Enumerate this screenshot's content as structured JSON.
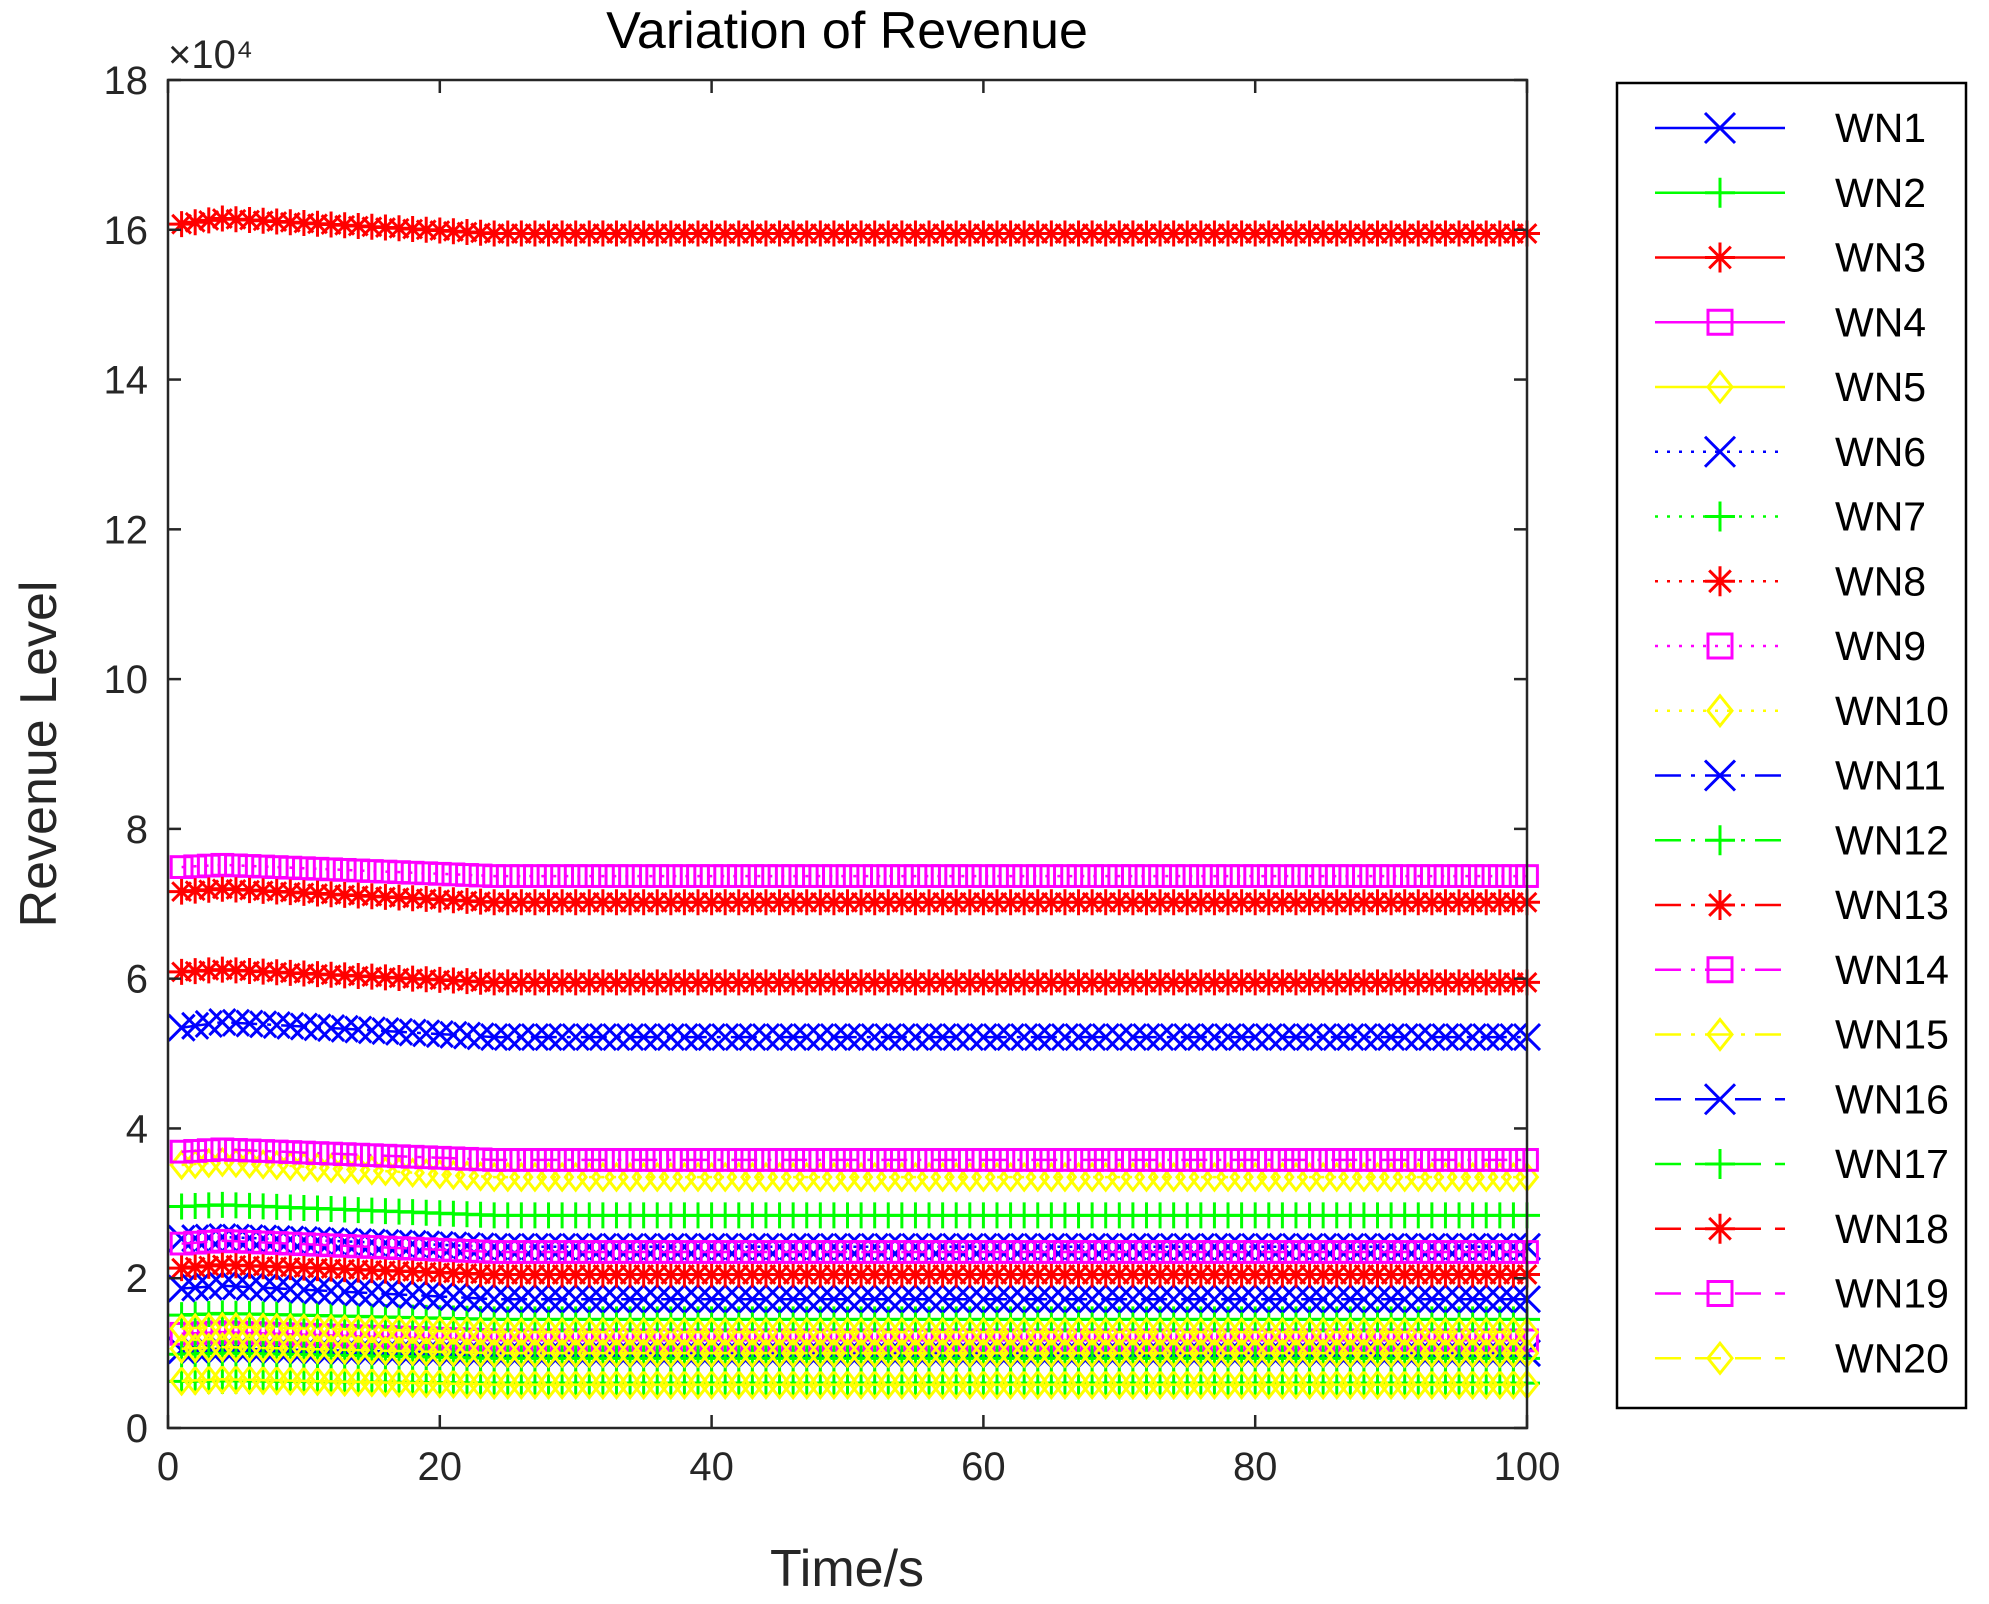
{
  "chart_data": {
    "type": "line",
    "title": "Variation of Revenue",
    "xlabel": "Time/s",
    "ylabel": "Revenue Level",
    "exponent_label": "×10⁴",
    "xlim": [
      0,
      100
    ],
    "ylim": [
      0,
      18
    ],
    "xticks": [
      0,
      20,
      40,
      60,
      80,
      100
    ],
    "yticks": [
      0,
      2,
      4,
      6,
      8,
      10,
      12,
      14,
      16,
      18
    ],
    "x_step": 1,
    "x_end": 100,
    "grid": false,
    "legend_position": "outside-right",
    "series": [
      {
        "name": "WN1",
        "color": "#0000ff",
        "style": "solid",
        "marker": "x",
        "start": 1.03,
        "peak": 1.06,
        "end": 1.0
      },
      {
        "name": "WN2",
        "color": "#00ff00",
        "style": "solid",
        "marker": "plus",
        "start": 0.62,
        "peak": 0.63,
        "end": 0.6
      },
      {
        "name": "WN3",
        "color": "#ff0000",
        "style": "solid",
        "marker": "star",
        "start": 16.05,
        "peak": 16.15,
        "end": 15.95
      },
      {
        "name": "WN4",
        "color": "#ff00ff",
        "style": "solid",
        "marker": "square",
        "start": 1.25,
        "peak": 1.28,
        "end": 1.17
      },
      {
        "name": "WN5",
        "color": "#ffff00",
        "style": "solid",
        "marker": "diamond",
        "start": 0.62,
        "peak": 0.65,
        "end": 0.58
      },
      {
        "name": "WN6",
        "color": "#0000ff",
        "style": "dotted",
        "marker": "x",
        "start": 2.52,
        "peak": 2.55,
        "end": 2.42
      },
      {
        "name": "WN7",
        "color": "#00ff00",
        "style": "dotted",
        "marker": "plus",
        "start": 2.95,
        "peak": 2.98,
        "end": 2.84
      },
      {
        "name": "WN8",
        "color": "#ff0000",
        "style": "dotted",
        "marker": "star",
        "start": 7.15,
        "peak": 7.2,
        "end": 7.02
      },
      {
        "name": "WN9",
        "color": "#ff00ff",
        "style": "dotted",
        "marker": "square",
        "start": 7.48,
        "peak": 7.52,
        "end": 7.37
      },
      {
        "name": "WN10",
        "color": "#ffff00",
        "style": "dotted",
        "marker": "diamond",
        "start": 3.5,
        "peak": 3.55,
        "end": 3.35
      },
      {
        "name": "WN11",
        "color": "#0000ff",
        "style": "dashdot",
        "marker": "x",
        "start": 5.32,
        "peak": 5.42,
        "end": 5.22
      },
      {
        "name": "WN12",
        "color": "#00ff00",
        "style": "dashdot",
        "marker": "plus",
        "start": 1.5,
        "peak": 1.53,
        "end": 1.45
      },
      {
        "name": "WN13",
        "color": "#ff0000",
        "style": "dashdot",
        "marker": "star",
        "start": 6.08,
        "peak": 6.12,
        "end": 5.95
      },
      {
        "name": "WN14",
        "color": "#ff00ff",
        "style": "dashdot",
        "marker": "square",
        "start": 3.68,
        "peak": 3.72,
        "end": 3.58
      },
      {
        "name": "WN15",
        "color": "#ffff00",
        "style": "dashdot",
        "marker": "diamond",
        "start": 1.32,
        "peak": 1.35,
        "end": 1.28
      },
      {
        "name": "WN16",
        "color": "#0000ff",
        "style": "dashed",
        "marker": "x",
        "start": 1.85,
        "peak": 1.9,
        "end": 1.72
      },
      {
        "name": "WN17",
        "color": "#00ff00",
        "style": "dashed",
        "marker": "plus",
        "start": 0.98,
        "peak": 1.0,
        "end": 0.93
      },
      {
        "name": "WN18",
        "color": "#ff0000",
        "style": "dashed",
        "marker": "star",
        "start": 2.12,
        "peak": 2.18,
        "end": 2.05
      },
      {
        "name": "WN19",
        "color": "#ff00ff",
        "style": "dashed",
        "marker": "square",
        "start": 2.45,
        "peak": 2.5,
        "end": 2.35
      },
      {
        "name": "WN20",
        "color": "#ffff00",
        "style": "dashed",
        "marker": "diamond",
        "start": 1.05,
        "peak": 1.08,
        "end": 1.0
      }
    ]
  }
}
